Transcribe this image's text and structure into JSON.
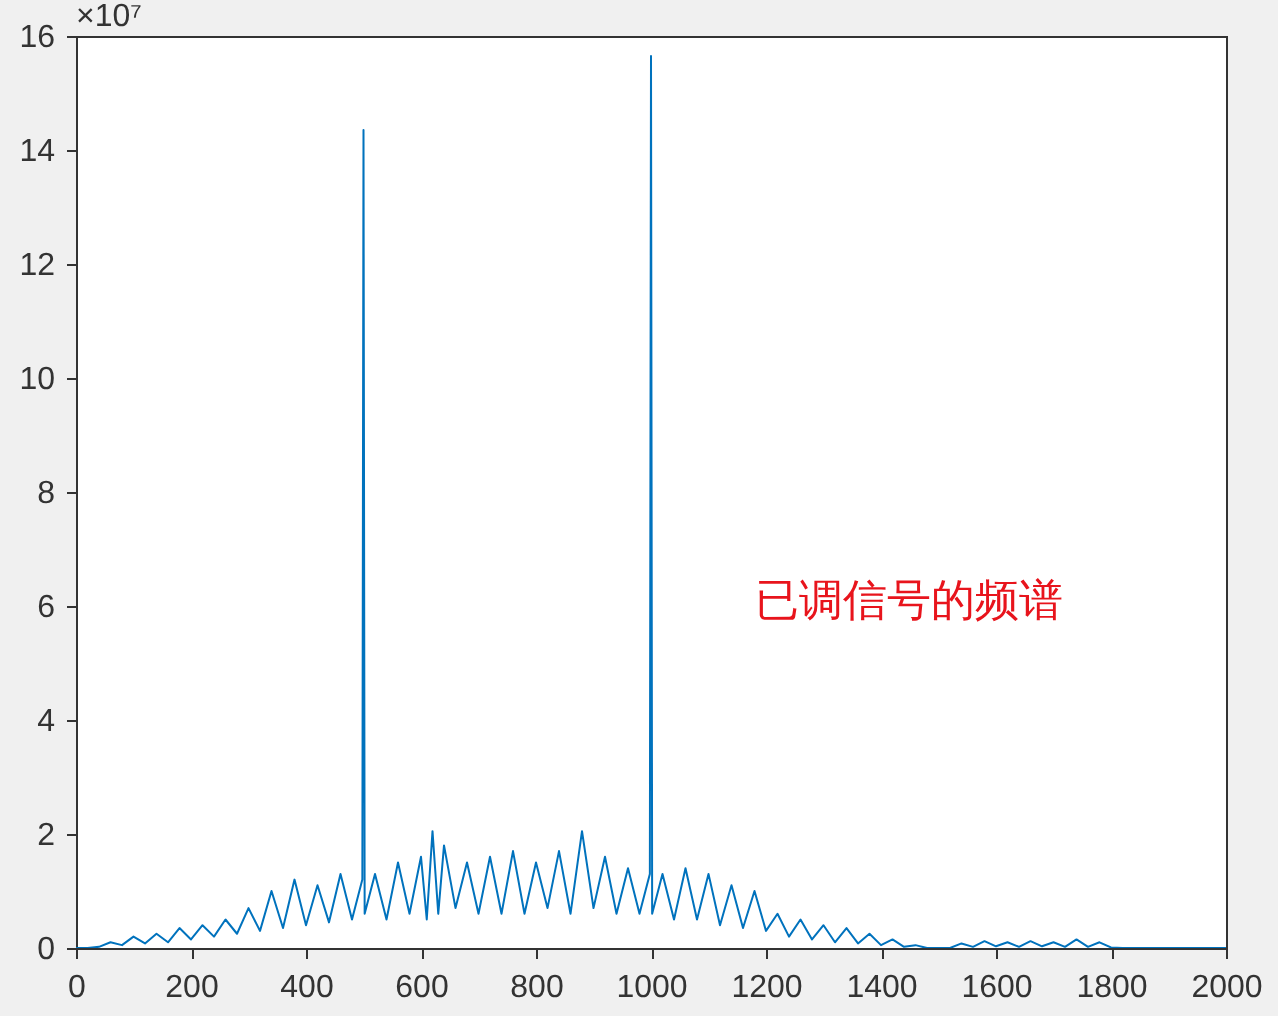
{
  "chart_data": {
    "type": "line",
    "x": [
      0,
      20,
      40,
      60,
      80,
      100,
      120,
      140,
      160,
      180,
      200,
      220,
      240,
      260,
      280,
      300,
      320,
      340,
      360,
      380,
      400,
      420,
      440,
      460,
      480,
      498,
      500,
      502,
      520,
      540,
      560,
      580,
      600,
      610,
      620,
      630,
      640,
      660,
      680,
      700,
      720,
      740,
      760,
      780,
      800,
      820,
      840,
      860,
      880,
      900,
      920,
      940,
      960,
      980,
      998,
      1000,
      1002,
      1020,
      1040,
      1060,
      1080,
      1100,
      1120,
      1140,
      1160,
      1180,
      1200,
      1220,
      1240,
      1260,
      1280,
      1300,
      1320,
      1340,
      1360,
      1380,
      1400,
      1420,
      1440,
      1460,
      1480,
      1500,
      1520,
      1540,
      1560,
      1580,
      1600,
      1620,
      1640,
      1660,
      1680,
      1700,
      1720,
      1740,
      1760,
      1780,
      1800,
      1820,
      2000
    ],
    "series": [
      {
        "color": "#0072bd",
        "values": [
          0,
          0,
          0.02,
          0.1,
          0.05,
          0.2,
          0.08,
          0.25,
          0.1,
          0.35,
          0.15,
          0.4,
          0.2,
          0.5,
          0.25,
          0.7,
          0.3,
          1.0,
          0.35,
          1.2,
          0.4,
          1.1,
          0.45,
          1.3,
          0.5,
          1.2,
          14.35,
          0.6,
          1.3,
          0.5,
          1.5,
          0.6,
          1.6,
          0.5,
          2.05,
          0.6,
          1.8,
          0.7,
          1.5,
          0.6,
          1.6,
          0.6,
          1.7,
          0.6,
          1.5,
          0.7,
          1.7,
          0.6,
          2.05,
          0.7,
          1.6,
          0.6,
          1.4,
          0.6,
          1.3,
          15.65,
          0.6,
          1.3,
          0.5,
          1.4,
          0.5,
          1.3,
          0.4,
          1.1,
          0.35,
          1.0,
          0.3,
          0.6,
          0.2,
          0.5,
          0.15,
          0.4,
          0.1,
          0.35,
          0.08,
          0.25,
          0.05,
          0.15,
          0.02,
          0.05,
          0,
          0,
          0,
          0.08,
          0.02,
          0.12,
          0.03,
          0.1,
          0.02,
          0.12,
          0.03,
          0.1,
          0.02,
          0.15,
          0.02,
          0.1,
          0.01,
          0,
          0
        ]
      }
    ],
    "xlim": [
      0,
      2000
    ],
    "xticks": [
      0,
      200,
      400,
      600,
      800,
      1000,
      1200,
      1400,
      1600,
      1800,
      2000
    ],
    "ylim": [
      0,
      16
    ],
    "yticks": [
      0,
      2,
      4,
      6,
      8,
      10,
      12,
      14,
      16
    ],
    "grid": false,
    "marker": "none",
    "line_style": "solid",
    "annotations": [
      "×10⁷",
      "已调信号的频谱"
    ]
  }
}
